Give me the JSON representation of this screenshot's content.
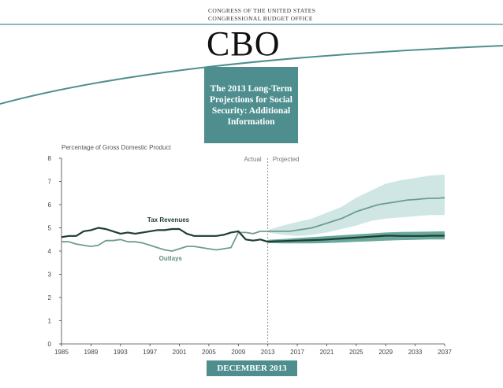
{
  "header": {
    "org_line1": "CONGRESS OF THE UNITED STATES",
    "org_line2": "CONGRESSIONAL BUDGET OFFICE",
    "logo": "CBO",
    "title": "The 2013 Long-Term Projections for Social Security: Additional Information",
    "date": "DECEMBER 2013"
  },
  "colors": {
    "accent": "#4f8e8f",
    "band_light": "#cfe6e4",
    "band_dark": "#4d9a8a",
    "outlays_line": "#6e9c90",
    "revenues_line": "#1f3d36",
    "swoosh": "#4f8e8f"
  },
  "chart_data": {
    "type": "line",
    "ylabel": "Percentage of Gross Domestic Product",
    "ylim": [
      0,
      8
    ],
    "yticks": [
      0,
      1,
      2,
      3,
      4,
      5,
      6,
      7,
      8
    ],
    "xlim": [
      1985,
      2037
    ],
    "xticks": [
      1985,
      1989,
      1993,
      1997,
      2001,
      2005,
      2009,
      2013,
      2017,
      2021,
      2025,
      2029,
      2033,
      2037
    ],
    "divider_year": 2013,
    "actual_label": "Actual",
    "projected_label": "Projected",
    "series": [
      {
        "name": "Outlays",
        "label": "Outlays",
        "x": [
          1985,
          1986,
          1987,
          1988,
          1989,
          1990,
          1991,
          1992,
          1993,
          1994,
          1995,
          1996,
          1997,
          1998,
          1999,
          2000,
          2001,
          2002,
          2003,
          2004,
          2005,
          2006,
          2007,
          2008,
          2009,
          2010,
          2011,
          2012,
          2013,
          2014,
          2015,
          2016,
          2017,
          2018,
          2019,
          2020,
          2021,
          2022,
          2023,
          2024,
          2025,
          2026,
          2027,
          2028,
          2029,
          2030,
          2031,
          2032,
          2033,
          2034,
          2035,
          2036,
          2037
        ],
        "values": [
          4.4,
          4.4,
          4.3,
          4.25,
          4.2,
          4.25,
          4.45,
          4.45,
          4.5,
          4.4,
          4.4,
          4.35,
          4.25,
          4.15,
          4.05,
          4.0,
          4.1,
          4.2,
          4.2,
          4.15,
          4.1,
          4.05,
          4.1,
          4.15,
          4.8,
          4.8,
          4.75,
          4.85,
          4.85,
          4.85,
          4.85,
          4.85,
          4.9,
          4.95,
          5.0,
          5.1,
          5.2,
          5.3,
          5.4,
          5.55,
          5.7,
          5.8,
          5.9,
          6.0,
          6.05,
          6.1,
          6.15,
          6.2,
          6.22,
          6.25,
          6.27,
          6.27,
          6.3
        ]
      },
      {
        "name": "Tax Revenues",
        "label": "Tax Revenues",
        "x": [
          1985,
          1986,
          1987,
          1988,
          1989,
          1990,
          1991,
          1992,
          1993,
          1994,
          1995,
          1996,
          1997,
          1998,
          1999,
          2000,
          2001,
          2002,
          2003,
          2004,
          2005,
          2006,
          2007,
          2008,
          2009,
          2010,
          2011,
          2012,
          2013,
          2014,
          2015,
          2016,
          2017,
          2018,
          2019,
          2020,
          2021,
          2022,
          2023,
          2024,
          2025,
          2026,
          2027,
          2028,
          2029,
          2030,
          2031,
          2032,
          2033,
          2034,
          2035,
          2036,
          2037
        ],
        "values": [
          4.6,
          4.65,
          4.65,
          4.85,
          4.9,
          5.0,
          4.95,
          4.85,
          4.75,
          4.8,
          4.75,
          4.8,
          4.85,
          4.9,
          4.9,
          4.95,
          4.95,
          4.75,
          4.65,
          4.65,
          4.65,
          4.65,
          4.7,
          4.8,
          4.85,
          4.5,
          4.45,
          4.5,
          4.4,
          4.42,
          4.43,
          4.44,
          4.45,
          4.46,
          4.47,
          4.48,
          4.5,
          4.52,
          4.54,
          4.56,
          4.58,
          4.6,
          4.62,
          4.64,
          4.66,
          4.66,
          4.65,
          4.65,
          4.65,
          4.65,
          4.66,
          4.66,
          4.66
        ]
      }
    ],
    "bands": [
      {
        "name": "Outlays uncertainty range",
        "x": [
          2013,
          2015,
          2017,
          2019,
          2021,
          2023,
          2025,
          2027,
          2029,
          2031,
          2033,
          2035,
          2037
        ],
        "low": [
          4.8,
          4.7,
          4.65,
          4.7,
          4.8,
          4.95,
          5.1,
          5.3,
          5.4,
          5.45,
          5.5,
          5.55,
          5.55
        ],
        "high": [
          4.9,
          5.1,
          5.25,
          5.4,
          5.65,
          5.9,
          6.3,
          6.6,
          6.9,
          7.05,
          7.15,
          7.25,
          7.3
        ]
      },
      {
        "name": "Tax revenues uncertainty range",
        "x": [
          2013,
          2015,
          2017,
          2019,
          2021,
          2023,
          2025,
          2027,
          2029,
          2031,
          2033,
          2035,
          2037
        ],
        "low": [
          4.35,
          4.33,
          4.33,
          4.33,
          4.35,
          4.37,
          4.4,
          4.42,
          4.45,
          4.47,
          4.48,
          4.5,
          4.5
        ],
        "high": [
          4.48,
          4.52,
          4.56,
          4.6,
          4.64,
          4.68,
          4.72,
          4.76,
          4.8,
          4.82,
          4.83,
          4.84,
          4.85
        ]
      }
    ]
  }
}
